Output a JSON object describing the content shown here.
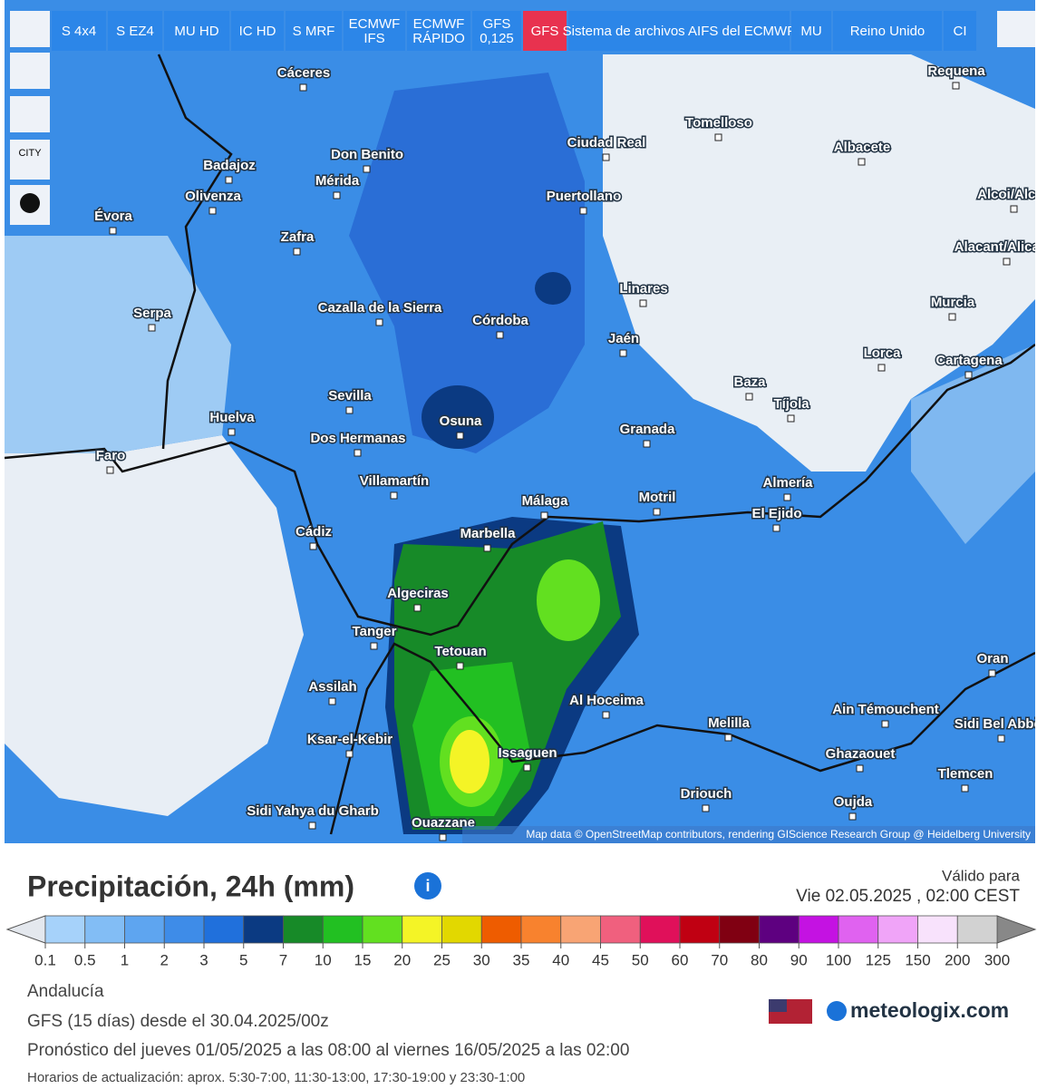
{
  "toolbar": {
    "buttons": [
      "S 4x4",
      "S EZ4",
      "MU HD",
      "IC HD",
      "S MRF",
      "ECMWF IFS",
      "ECMWF RÁPIDO",
      "GFS 0,125",
      "GFS",
      "Sistema de archivos AIFS del ECMWF",
      "MU",
      "Reino Unido",
      "CI"
    ],
    "side": [
      "CITY"
    ]
  },
  "map": {
    "cities": [
      "Cáceres",
      "Badajoz",
      "Don Benito",
      "Mérida",
      "Olivenza",
      "Évora",
      "Zafra",
      "Serpa",
      "Cazalla de la Sierra",
      "Córdoba",
      "Sevilla",
      "Huelva",
      "Osuna",
      "Dos Hermanas",
      "Faro",
      "Villamartín",
      "Cádiz",
      "Málaga",
      "Marbella",
      "Algeciras",
      "Tanger",
      "Tetouan",
      "Assilah",
      "Ksar-el-Kebir",
      "Sidi Yahya du Gharb",
      "Ouazzane",
      "Issaguen",
      "Al Hoceima",
      "Melilla",
      "Driouch",
      "Oujda",
      "Ghazaouet",
      "Ain Témouchent",
      "Tlemcen",
      "Sidi Bel Abbès",
      "Oran",
      "Motril",
      "Granada",
      "Jaén",
      "Linares",
      "Puertollano",
      "Ciudad Real",
      "Tomelloso",
      "Albacete",
      "Requena",
      "Murcia",
      "Cartagena",
      "Lorca",
      "Baza",
      "Tíjola",
      "Almería",
      "El Ejido",
      "Alacant/Alicante",
      "Alcoi/Alcoy"
    ],
    "attribution": "Map data © OpenStreetMap contributors, rendering GIScience Research Group @ Heidelberg University"
  },
  "header": {
    "title": "Precipitación, 24h (mm)",
    "valid_label": "Válido para",
    "valid_time": "Vie 02.05.2025 , 02:00 CEST"
  },
  "legend": {
    "ticks": [
      0.1,
      0.5,
      1,
      2,
      3,
      5,
      7,
      10,
      15,
      20,
      25,
      30,
      35,
      40,
      45,
      50,
      60,
      70,
      80,
      90,
      100,
      125,
      150,
      200,
      300
    ],
    "colors": [
      "#a6d2fa",
      "#82bdf5",
      "#5ea5f0",
      "#3e8ce8",
      "#2070dc",
      "#0b3a82",
      "#178a28",
      "#22c022",
      "#62e020",
      "#f4f426",
      "#e2d800",
      "#ee5c00",
      "#f8822e",
      "#f8a474",
      "#f0607e",
      "#e0105a",
      "#c00012",
      "#800012",
      "#5e0080",
      "#c412e2",
      "#e062f0",
      "#f0a4f8",
      "#f8e2fc",
      "#d2d2d2"
    ]
  },
  "footer": {
    "region": "Andalucía",
    "model": "GFS (15 días) desde el 30.04.2025/00z",
    "forecast": "Pronóstico del jueves 01/05/2025 a las 08:00 al viernes 16/05/2025 a las 02:00",
    "schedule": "Horarios de actualización: aprox. 5:30-7:00, 11:30-13:00, 17:30-19:00 y 23:30-1:00",
    "brand": "meteologix.com"
  }
}
